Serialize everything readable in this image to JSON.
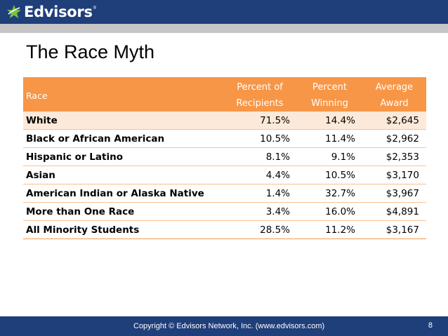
{
  "header": {
    "brand": "Edvisors",
    "brand_mark": "®",
    "accent_color": "#7ac143",
    "bar_color": "#1f3f7a"
  },
  "slide": {
    "title": "The Race Myth"
  },
  "table": {
    "header_color": "#f79646",
    "columns": [
      {
        "line1": "Race",
        "line2": ""
      },
      {
        "line1": "Percent of",
        "line2": "Recipients"
      },
      {
        "line1": "Percent",
        "line2": "Winning"
      },
      {
        "line1": "Average",
        "line2": "Award"
      }
    ],
    "rows": [
      {
        "race": "White",
        "percent_recipients": "71.5%",
        "percent_winning": "14.4%",
        "average_award": "$2,645"
      },
      {
        "race": "Black or African American",
        "percent_recipients": "10.5%",
        "percent_winning": "11.4%",
        "average_award": "$2,962"
      },
      {
        "race": "Hispanic or Latino",
        "percent_recipients": "8.1%",
        "percent_winning": "9.1%",
        "average_award": "$2,353"
      },
      {
        "race": "Asian",
        "percent_recipients": "4.4%",
        "percent_winning": "10.5%",
        "average_award": "$3,170"
      },
      {
        "race": "American Indian or Alaska Native",
        "percent_recipients": "1.4%",
        "percent_winning": "32.7%",
        "average_award": "$3,967"
      },
      {
        "race": "More than One Race",
        "percent_recipients": "3.4%",
        "percent_winning": "16.0%",
        "average_award": "$4,891"
      },
      {
        "race": "All Minority Students",
        "percent_recipients": "28.5%",
        "percent_winning": "11.2%",
        "average_award": "$3,167"
      }
    ]
  },
  "footer": {
    "copyright": "Copyright © Edvisors Network, Inc. (www.edvisors.com)",
    "page_number": "8"
  }
}
